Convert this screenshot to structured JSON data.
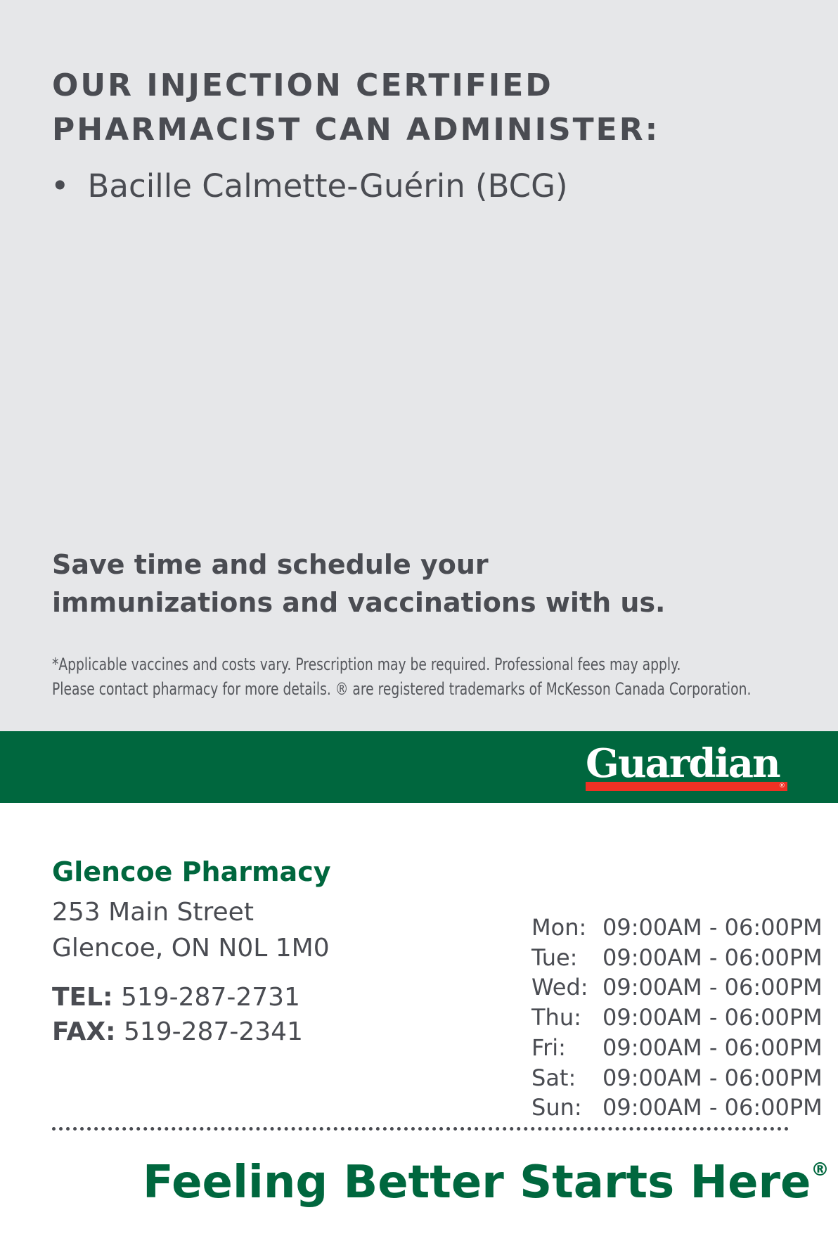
{
  "services": {
    "heading_line1": "OUR INJECTION CERTIFIED",
    "heading_line2": "PHARMACIST CAN ADMINISTER:",
    "items": [
      "Bacille Calmette-Guérin (BCG)"
    ]
  },
  "promo": {
    "line1": "Save time and schedule your",
    "line2": "immunizations and vaccinations with us."
  },
  "disclaimer": {
    "line1": "*Applicable vaccines and costs vary. Prescription may be required. Professional fees may apply.",
    "line2": "Please contact pharmacy for more details. ® are registered trademarks of McKesson Canada Corporation."
  },
  "brand": {
    "logo_text": "Guardian",
    "logo_reg": "®",
    "green": "#00673e",
    "red": "#ee3124"
  },
  "pharmacy": {
    "name": "Glencoe Pharmacy",
    "street": "253 Main Street",
    "city": "Glencoe, ON N0L 1M0",
    "tel_label": "TEL:",
    "tel": "519-287-2731",
    "fax_label": "FAX:",
    "fax": "519-287-2341"
  },
  "hours": [
    {
      "day": "Mon:",
      "time": "09:00AM - 06:00PM"
    },
    {
      "day": "Tue:",
      "time": "09:00AM - 06:00PM"
    },
    {
      "day": "Wed:",
      "time": "09:00AM - 06:00PM"
    },
    {
      "day": "Thu:",
      "time": "09:00AM - 06:00PM"
    },
    {
      "day": "Fri:",
      "time": "09:00AM - 06:00PM"
    },
    {
      "day": "Sat:",
      "time": "09:00AM - 06:00PM"
    },
    {
      "day": "Sun:",
      "time": "09:00AM - 06:00PM"
    }
  ],
  "slogan": {
    "text": "Feeling Better Starts Here",
    "reg": "®"
  }
}
